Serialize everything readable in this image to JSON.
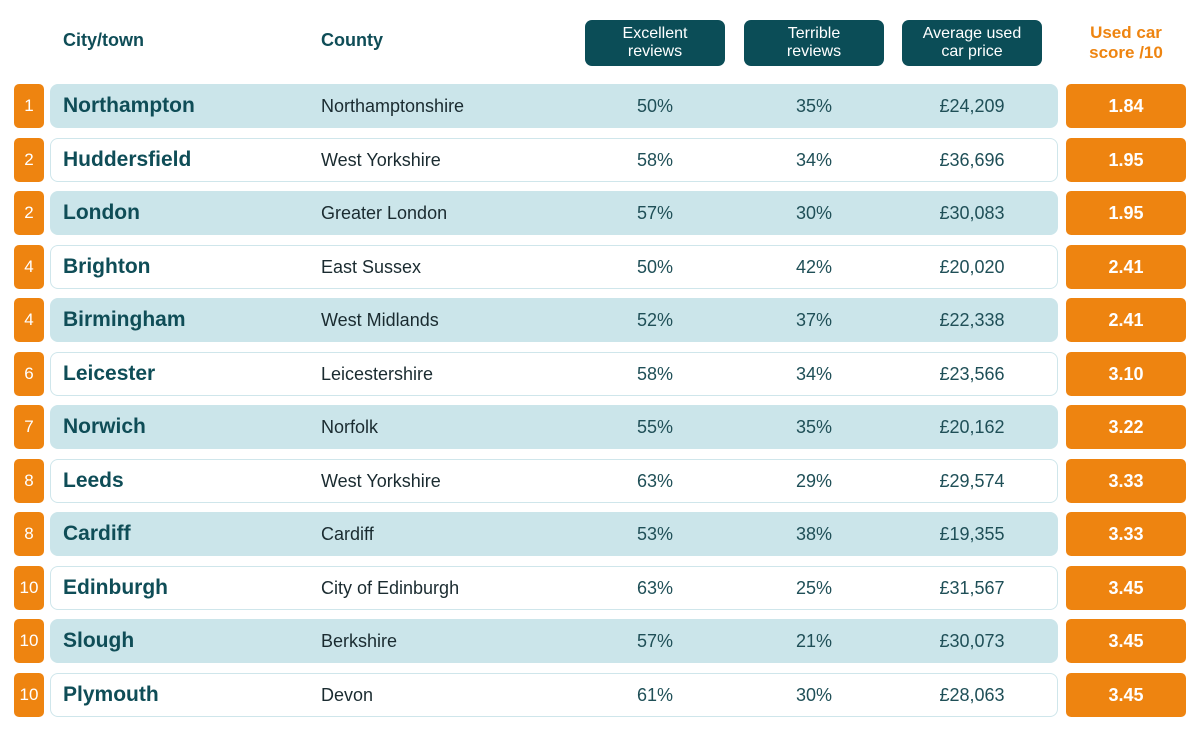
{
  "chart_data": {
    "type": "table",
    "columns": {
      "city": "City/town",
      "county": "County",
      "excellent": "Excellent\nreviews",
      "terrible": "Terrible\nreviews",
      "price": "Average used\ncar price",
      "score": "Used car\nscore /10"
    },
    "rows": [
      {
        "rank": "1",
        "city": "Northampton",
        "county": "Northamptonshire",
        "excellent": "50%",
        "terrible": "35%",
        "price": "£24,209",
        "score": "1.84"
      },
      {
        "rank": "2",
        "city": "Huddersfield",
        "county": "West Yorkshire",
        "excellent": "58%",
        "terrible": "34%",
        "price": "£36,696",
        "score": "1.95"
      },
      {
        "rank": "2",
        "city": "London",
        "county": "Greater London",
        "excellent": "57%",
        "terrible": "30%",
        "price": "£30,083",
        "score": "1.95"
      },
      {
        "rank": "4",
        "city": "Brighton",
        "county": "East Sussex",
        "excellent": "50%",
        "terrible": "42%",
        "price": "£20,020",
        "score": "2.41"
      },
      {
        "rank": "4",
        "city": "Birmingham",
        "county": "West Midlands",
        "excellent": "52%",
        "terrible": "37%",
        "price": "£22,338",
        "score": "2.41"
      },
      {
        "rank": "6",
        "city": "Leicester",
        "county": "Leicestershire",
        "excellent": "58%",
        "terrible": "34%",
        "price": "£23,566",
        "score": "3.10"
      },
      {
        "rank": "7",
        "city": "Norwich",
        "county": "Norfolk",
        "excellent": "55%",
        "terrible": "35%",
        "price": "£20,162",
        "score": "3.22"
      },
      {
        "rank": "8",
        "city": "Leeds",
        "county": "West Yorkshire",
        "excellent": "63%",
        "terrible": "29%",
        "price": "£29,574",
        "score": "3.33"
      },
      {
        "rank": "8",
        "city": "Cardiff",
        "county": "Cardiff",
        "excellent": "53%",
        "terrible": "38%",
        "price": "£19,355",
        "score": "3.33"
      },
      {
        "rank": "10",
        "city": "Edinburgh",
        "county": "City of Edinburgh",
        "excellent": "63%",
        "terrible": "25%",
        "price": "£31,567",
        "score": "3.45"
      },
      {
        "rank": "10",
        "city": "Slough",
        "county": "Berkshire",
        "excellent": "57%",
        "terrible": "21%",
        "price": "£30,073",
        "score": "3.45"
      },
      {
        "rank": "10",
        "city": "Plymouth",
        "county": "Devon",
        "excellent": "61%",
        "terrible": "30%",
        "price": "£28,063",
        "score": "3.45"
      }
    ],
    "colors": {
      "accent": "#ee8410",
      "header_pill": "#0b4d57",
      "row_shade": "#cbe5ea",
      "text_dark": "#0f4d57"
    }
  }
}
